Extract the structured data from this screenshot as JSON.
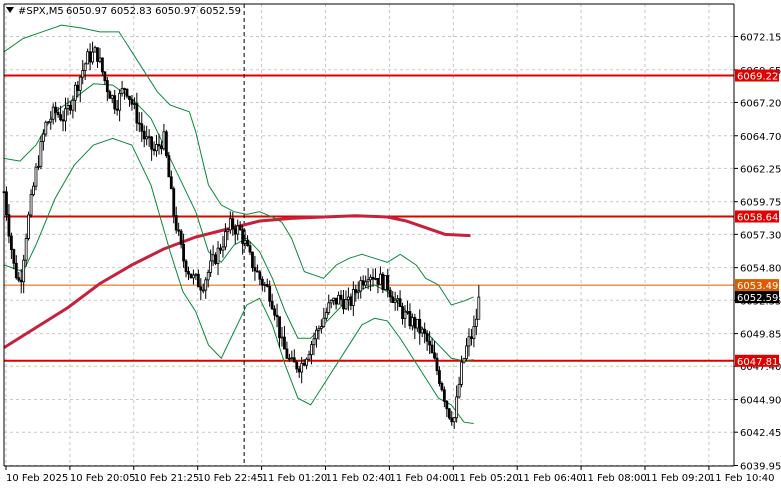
{
  "header": {
    "symbol": "#SPX,M5",
    "ohlc": "6050.97 6052.83 6050.97 6052.59",
    "icon": "chart-dropdown-triangle-icon"
  },
  "colors": {
    "bg": "#ffffff",
    "grid": "#c8c8c8",
    "axis": "#000000",
    "candle": "#000000",
    "bollinger": "#0a8a3a",
    "ma": "#c8203c",
    "level_line": "#e00000",
    "price_line": "#e05a00",
    "current_tag_bg": "#000000",
    "vline": "#000000"
  },
  "chart_data": {
    "type": "candlestick",
    "title": "#SPX,M5",
    "ylim": [
      6039.95,
      6074.5
    ],
    "y_ticks": [
      "6072.15",
      "6069.65",
      "6067.20",
      "6064.70",
      "6062.25",
      "6059.75",
      "6057.30",
      "6054.80",
      "6052.35",
      "6049.85",
      "6047.40",
      "6044.90",
      "6042.45",
      "6039.95"
    ],
    "x_ticks": [
      "10 Feb 2025",
      "10 Feb 20:05",
      "10 Feb 21:25",
      "10 Feb 22:45",
      "11 Feb 01:20",
      "11 Feb 02:40",
      "11 Feb 04:00",
      "11 Feb 05:20",
      "11 Feb 06:40",
      "11 Feb 08:00",
      "11 Feb 09:20",
      "11 Feb 10:40"
    ],
    "horizontal_levels": [
      {
        "value": 6069.22,
        "label": "6069.22",
        "style": "support-resistance"
      },
      {
        "value": 6058.64,
        "label": "6058.64",
        "style": "support-resistance"
      },
      {
        "value": 6047.81,
        "label": "6047.81",
        "style": "support-resistance"
      },
      {
        "value": 6053.49,
        "label": "6053.49",
        "style": "price-line"
      }
    ],
    "current_price": {
      "value": 6052.59,
      "label": "6052.59"
    },
    "session_separator_x_index": 2.6,
    "price_path": [
      [
        0.0,
        6060.5
      ],
      [
        0.15,
        6055.0
      ],
      [
        0.25,
        6053.5
      ],
      [
        0.35,
        6057.5
      ],
      [
        0.5,
        6062.0
      ],
      [
        0.65,
        6065.5
      ],
      [
        0.8,
        6066.5
      ],
      [
        0.95,
        6066.0
      ],
      [
        1.1,
        6068.0
      ],
      [
        1.3,
        6070.5
      ],
      [
        1.45,
        6071.0
      ],
      [
        1.6,
        6068.5
      ],
      [
        1.75,
        6067.0
      ],
      [
        1.9,
        6068.5
      ],
      [
        2.05,
        6066.5
      ],
      [
        2.2,
        6064.5
      ],
      [
        2.35,
        6063.5
      ],
      [
        2.5,
        6064.5
      ],
      [
        2.65,
        6059.0
      ],
      [
        2.8,
        6055.5
      ],
      [
        2.95,
        6054.0
      ],
      [
        3.1,
        6053.5
      ],
      [
        3.25,
        6055.0
      ],
      [
        3.4,
        6056.5
      ],
      [
        3.55,
        6058.0
      ],
      [
        3.7,
        6057.5
      ],
      [
        3.85,
        6055.5
      ],
      [
        4.0,
        6054.0
      ],
      [
        4.15,
        6053.0
      ],
      [
        4.25,
        6051.5
      ],
      [
        4.35,
        6049.0
      ],
      [
        4.5,
        6047.5
      ],
      [
        4.65,
        6047.5
      ],
      [
        4.8,
        6049.0
      ],
      [
        4.95,
        6050.5
      ],
      [
        5.1,
        6052.0
      ],
      [
        5.25,
        6052.5
      ],
      [
        5.4,
        6052.0
      ],
      [
        5.55,
        6053.5
      ],
      [
        5.7,
        6054.5
      ],
      [
        5.85,
        6054.0
      ],
      [
        6.0,
        6053.5
      ],
      [
        6.15,
        6052.0
      ],
      [
        6.3,
        6051.0
      ],
      [
        6.45,
        6050.5
      ],
      [
        6.6,
        6049.5
      ],
      [
        6.75,
        6047.5
      ],
      [
        6.85,
        6046.0
      ],
      [
        6.95,
        6044.0
      ],
      [
        7.05,
        6043.5
      ],
      [
        7.15,
        6047.0
      ],
      [
        7.25,
        6049.0
      ],
      [
        7.35,
        6050.0
      ],
      [
        7.45,
        6052.5
      ]
    ],
    "series": [
      {
        "name": "",
        "kind": "moving-average",
        "values": [
          [
            0.0,
            6048.8
          ],
          [
            0.5,
            6050.3
          ],
          [
            1.0,
            6051.8
          ],
          [
            1.5,
            6053.6
          ],
          [
            2.0,
            6055.0
          ],
          [
            2.5,
            6056.2
          ],
          [
            3.0,
            6057.1
          ],
          [
            3.5,
            6057.7
          ],
          [
            4.0,
            6058.3
          ],
          [
            4.5,
            6058.5
          ],
          [
            5.0,
            6058.6
          ],
          [
            5.5,
            6058.7
          ],
          [
            6.0,
            6058.6
          ],
          [
            6.3,
            6058.3
          ],
          [
            6.6,
            6057.8
          ],
          [
            6.9,
            6057.3
          ],
          [
            7.3,
            6057.2
          ]
        ]
      },
      {
        "name": "",
        "kind": "bollinger-upper",
        "values": [
          [
            0.0,
            6071.0
          ],
          [
            0.3,
            6072.0
          ],
          [
            0.6,
            6072.5
          ],
          [
            0.9,
            6073.0
          ],
          [
            1.2,
            6072.8
          ],
          [
            1.5,
            6072.5
          ],
          [
            1.8,
            6072.5
          ],
          [
            2.0,
            6071.0
          ],
          [
            2.2,
            6069.5
          ],
          [
            2.4,
            6068.0
          ],
          [
            2.6,
            6067.0
          ],
          [
            2.9,
            6066.5
          ],
          [
            3.0,
            6065.0
          ],
          [
            3.2,
            6061.0
          ],
          [
            3.4,
            6059.5
          ],
          [
            3.6,
            6059.0
          ],
          [
            3.8,
            6058.8
          ],
          [
            4.0,
            6059.0
          ],
          [
            4.2,
            6058.6
          ],
          [
            4.35,
            6058.2
          ],
          [
            4.5,
            6057.0
          ],
          [
            4.7,
            6054.5
          ],
          [
            5.0,
            6054.0
          ],
          [
            5.2,
            6055.0
          ],
          [
            5.4,
            6055.5
          ],
          [
            5.6,
            6055.8
          ],
          [
            5.8,
            6055.5
          ],
          [
            6.0,
            6055.2
          ],
          [
            6.2,
            6055.8
          ],
          [
            6.45,
            6055.0
          ],
          [
            6.6,
            6054.0
          ],
          [
            6.8,
            6053.5
          ],
          [
            7.0,
            6052.0
          ],
          [
            7.2,
            6052.3
          ],
          [
            7.35,
            6052.6
          ]
        ]
      },
      {
        "name": "",
        "kind": "bollinger-middle",
        "values": [
          [
            0.0,
            6063.0
          ],
          [
            0.25,
            6062.8
          ],
          [
            0.5,
            6064.0
          ],
          [
            0.8,
            6066.5
          ],
          [
            1.1,
            6067.5
          ],
          [
            1.4,
            6068.6
          ],
          [
            1.7,
            6068.5
          ],
          [
            2.0,
            6067.5
          ],
          [
            2.3,
            6066.0
          ],
          [
            2.6,
            6063.0
          ],
          [
            2.8,
            6061.0
          ],
          [
            3.0,
            6059.0
          ],
          [
            3.2,
            6056.0
          ],
          [
            3.4,
            6055.2
          ],
          [
            3.6,
            6056.5
          ],
          [
            3.8,
            6057.0
          ],
          [
            4.0,
            6056.0
          ],
          [
            4.2,
            6054.0
          ],
          [
            4.4,
            6051.5
          ],
          [
            4.6,
            6049.5
          ],
          [
            4.8,
            6049.5
          ],
          [
            5.0,
            6050.5
          ],
          [
            5.2,
            6051.5
          ],
          [
            5.4,
            6052.5
          ],
          [
            5.6,
            6053.2
          ],
          [
            5.8,
            6053.5
          ],
          [
            6.0,
            6053.0
          ],
          [
            6.2,
            6052.0
          ],
          [
            6.4,
            6051.0
          ],
          [
            6.6,
            6050.0
          ],
          [
            6.8,
            6049.0
          ],
          [
            7.0,
            6048.0
          ],
          [
            7.2,
            6047.8
          ],
          [
            7.35,
            6047.9
          ]
        ]
      },
      {
        "name": "",
        "kind": "bollinger-lower",
        "values": [
          [
            0.0,
            6055.0
          ],
          [
            0.3,
            6054.5
          ],
          [
            0.5,
            6056.5
          ],
          [
            0.8,
            6060.0
          ],
          [
            1.1,
            6062.5
          ],
          [
            1.4,
            6064.0
          ],
          [
            1.7,
            6064.5
          ],
          [
            2.0,
            6064.0
          ],
          [
            2.3,
            6061.0
          ],
          [
            2.6,
            6056.0
          ],
          [
            2.8,
            6053.0
          ],
          [
            3.0,
            6051.5
          ],
          [
            3.2,
            6049.0
          ],
          [
            3.4,
            6048.0
          ],
          [
            3.6,
            6050.0
          ],
          [
            3.8,
            6052.0
          ],
          [
            4.0,
            6052.5
          ],
          [
            4.2,
            6050.5
          ],
          [
            4.4,
            6047.5
          ],
          [
            4.6,
            6045.0
          ],
          [
            4.8,
            6044.5
          ],
          [
            5.0,
            6046.0
          ],
          [
            5.2,
            6047.5
          ],
          [
            5.4,
            6049.0
          ],
          [
            5.6,
            6050.5
          ],
          [
            5.8,
            6051.0
          ],
          [
            6.0,
            6050.8
          ],
          [
            6.2,
            6049.5
          ],
          [
            6.4,
            6048.0
          ],
          [
            6.6,
            6046.5
          ],
          [
            6.8,
            6045.0
          ],
          [
            7.0,
            6044.5
          ],
          [
            7.2,
            6043.2
          ],
          [
            7.35,
            6043.1
          ]
        ]
      }
    ],
    "grid": true,
    "legend": "none"
  }
}
